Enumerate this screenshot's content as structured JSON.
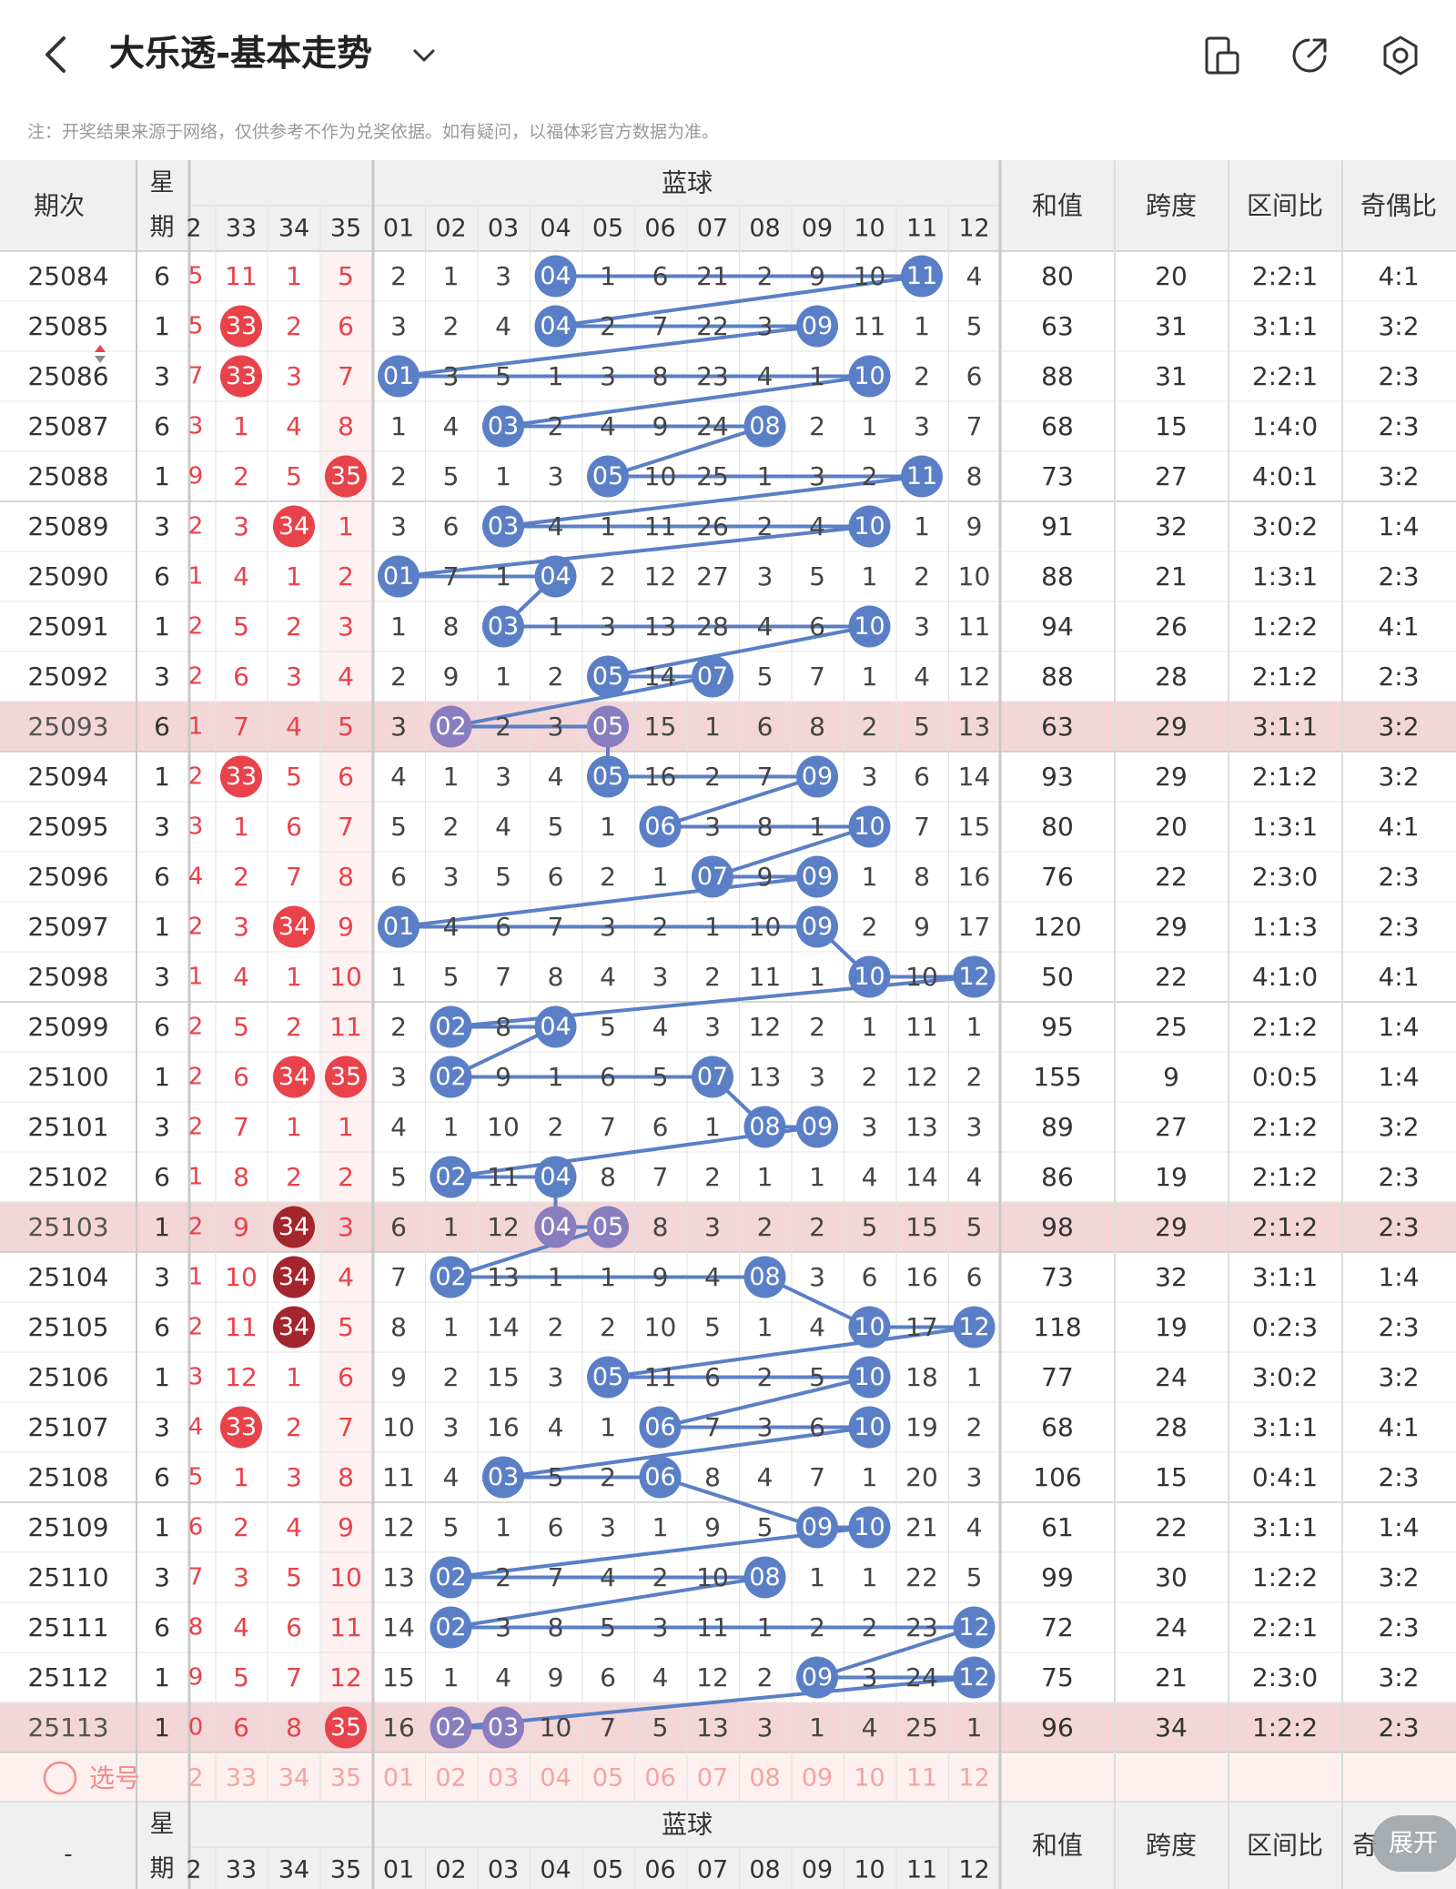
{
  "header": {
    "title": "大乐透-基本走势",
    "icons": [
      "chevron-left-icon",
      "chevron-down-icon",
      "device-icon",
      "share-icon",
      "settings-icon"
    ]
  },
  "notice": "注：开奖结果来源于网络，仅供参考不作为兑奖依据。如有疑问，以福体彩官方数据为准。",
  "table": {
    "period_label": "期次",
    "week_label_top": "星",
    "week_label_bottom": "期",
    "blue_label": "蓝球",
    "stat_labels": [
      "和值",
      "跨度",
      "区间比",
      "奇偶比"
    ],
    "front_partial_header": "2",
    "front_headers": [
      "33",
      "34",
      "35"
    ],
    "blue_headers": [
      "01",
      "02",
      "03",
      "04",
      "05",
      "06",
      "07",
      "08",
      "09",
      "10",
      "11",
      "12"
    ],
    "rows": [
      {
        "period": "25084",
        "week": "6",
        "partial": "5",
        "front": [
          "11",
          "1",
          "5"
        ],
        "blue_misses": [
          "2",
          "1",
          "3",
          "04",
          "1",
          "6",
          "21",
          "2",
          "9",
          "10",
          "11",
          "4"
        ],
        "sum": "80",
        "span": "20",
        "zone": "2:2:1",
        "odd_even": "4:1",
        "front_hits": [],
        "blue_hits": [
          "04",
          "11"
        ],
        "highlight": false
      },
      {
        "period": "25085",
        "week": "1",
        "partial": "5",
        "front": [
          "33",
          "2",
          "6"
        ],
        "blue_misses": [
          "3",
          "2",
          "4",
          "04",
          "2",
          "7",
          "22",
          "3",
          "09",
          "11",
          "1",
          "5"
        ],
        "sum": "63",
        "span": "31",
        "zone": "3:1:1",
        "odd_even": "3:2",
        "front_hits": [
          "33"
        ],
        "blue_hits": [
          "04",
          "09"
        ],
        "highlight": false
      },
      {
        "period": "25086",
        "week": "3",
        "partial": "7",
        "front": [
          "33",
          "3",
          "7"
        ],
        "blue_misses": [
          "01",
          "3",
          "5",
          "1",
          "3",
          "8",
          "23",
          "4",
          "1",
          "10",
          "2",
          "6"
        ],
        "sum": "88",
        "span": "31",
        "zone": "2:2:1",
        "odd_even": "2:3",
        "front_hits": [
          "33"
        ],
        "blue_hits": [
          "01",
          "10"
        ],
        "highlight": false
      },
      {
        "period": "25087",
        "week": "6",
        "partial": "3",
        "front": [
          "1",
          "4",
          "8"
        ],
        "blue_misses": [
          "1",
          "4",
          "03",
          "2",
          "4",
          "9",
          "24",
          "08",
          "2",
          "1",
          "3",
          "7"
        ],
        "sum": "68",
        "span": "15",
        "zone": "1:4:0",
        "odd_even": "2:3",
        "front_hits": [],
        "blue_hits": [
          "03",
          "08"
        ],
        "highlight": false
      },
      {
        "period": "25088",
        "week": "1",
        "partial": "9",
        "front": [
          "2",
          "5",
          "35"
        ],
        "blue_misses": [
          "2",
          "5",
          "1",
          "3",
          "05",
          "10",
          "25",
          "1",
          "3",
          "2",
          "11",
          "8"
        ],
        "sum": "73",
        "span": "27",
        "zone": "4:0:1",
        "odd_even": "3:2",
        "front_hits": [
          "35"
        ],
        "blue_hits": [
          "05",
          "11"
        ],
        "highlight": false
      },
      {
        "period": "25089",
        "week": "3",
        "partial": "2",
        "front": [
          "3",
          "34",
          "1"
        ],
        "blue_misses": [
          "3",
          "6",
          "03",
          "4",
          "1",
          "11",
          "26",
          "2",
          "4",
          "10",
          "1",
          "9"
        ],
        "sum": "91",
        "span": "32",
        "zone": "3:0:2",
        "odd_even": "1:4",
        "front_hits": [
          "34"
        ],
        "blue_hits": [
          "03",
          "10"
        ],
        "highlight": false
      },
      {
        "period": "25090",
        "week": "6",
        "partial": "1",
        "front": [
          "4",
          "1",
          "2"
        ],
        "blue_misses": [
          "01",
          "7",
          "1",
          "04",
          "2",
          "12",
          "27",
          "3",
          "5",
          "1",
          "2",
          "10"
        ],
        "sum": "88",
        "span": "21",
        "zone": "1:3:1",
        "odd_even": "2:3",
        "front_hits": [],
        "blue_hits": [
          "01",
          "04"
        ],
        "highlight": false
      },
      {
        "period": "25091",
        "week": "1",
        "partial": "2",
        "front": [
          "5",
          "2",
          "3"
        ],
        "blue_misses": [
          "1",
          "8",
          "03",
          "1",
          "3",
          "13",
          "28",
          "4",
          "6",
          "10",
          "3",
          "11"
        ],
        "sum": "94",
        "span": "26",
        "zone": "1:2:2",
        "odd_even": "4:1",
        "front_hits": [],
        "blue_hits": [
          "03",
          "10"
        ],
        "highlight": false
      },
      {
        "period": "25092",
        "week": "3",
        "partial": "2",
        "front": [
          "6",
          "3",
          "4"
        ],
        "blue_misses": [
          "2",
          "9",
          "1",
          "2",
          "05",
          "14",
          "07",
          "5",
          "7",
          "1",
          "4",
          "12"
        ],
        "sum": "88",
        "span": "28",
        "zone": "2:1:2",
        "odd_even": "2:3",
        "front_hits": [],
        "blue_hits": [
          "05",
          "07"
        ],
        "highlight": false
      },
      {
        "period": "25093",
        "week": "6",
        "partial": "1",
        "front": [
          "7",
          "4",
          "5"
        ],
        "blue_misses": [
          "3",
          "02",
          "2",
          "3",
          "05",
          "15",
          "1",
          "6",
          "8",
          "2",
          "5",
          "13"
        ],
        "sum": "63",
        "span": "29",
        "zone": "3:1:1",
        "odd_even": "3:2",
        "front_hits": [],
        "blue_hits": [
          "02",
          "05"
        ],
        "highlight": true
      },
      {
        "period": "25094",
        "week": "1",
        "partial": "2",
        "front": [
          "33",
          "5",
          "6"
        ],
        "blue_misses": [
          "4",
          "1",
          "3",
          "4",
          "05",
          "16",
          "2",
          "7",
          "09",
          "3",
          "6",
          "14"
        ],
        "sum": "93",
        "span": "29",
        "zone": "2:1:2",
        "odd_even": "3:2",
        "front_hits": [
          "33"
        ],
        "blue_hits": [
          "05",
          "09"
        ],
        "highlight": false
      },
      {
        "period": "25095",
        "week": "3",
        "partial": "3",
        "front": [
          "1",
          "6",
          "7"
        ],
        "blue_misses": [
          "5",
          "2",
          "4",
          "5",
          "1",
          "06",
          "3",
          "8",
          "1",
          "10",
          "7",
          "15"
        ],
        "sum": "80",
        "span": "20",
        "zone": "1:3:1",
        "odd_even": "4:1",
        "front_hits": [],
        "blue_hits": [
          "06",
          "10"
        ],
        "highlight": false
      },
      {
        "period": "25096",
        "week": "6",
        "partial": "4",
        "front": [
          "2",
          "7",
          "8"
        ],
        "blue_misses": [
          "6",
          "3",
          "5",
          "6",
          "2",
          "1",
          "07",
          "9",
          "09",
          "1",
          "8",
          "16"
        ],
        "sum": "76",
        "span": "22",
        "zone": "2:3:0",
        "odd_even": "2:3",
        "front_hits": [],
        "blue_hits": [
          "07",
          "09"
        ],
        "highlight": false
      },
      {
        "period": "25097",
        "week": "1",
        "partial": "2",
        "front": [
          "3",
          "34",
          "9"
        ],
        "blue_misses": [
          "01",
          "4",
          "6",
          "7",
          "3",
          "2",
          "1",
          "10",
          "09",
          "2",
          "9",
          "17"
        ],
        "sum": "120",
        "span": "29",
        "zone": "1:1:3",
        "odd_even": "2:3",
        "front_hits": [
          "34"
        ],
        "blue_hits": [
          "01",
          "09"
        ],
        "highlight": false
      },
      {
        "period": "25098",
        "week": "3",
        "partial": "1",
        "front": [
          "4",
          "1",
          "10"
        ],
        "blue_misses": [
          "1",
          "5",
          "7",
          "8",
          "4",
          "3",
          "2",
          "11",
          "1",
          "10",
          "10",
          "12"
        ],
        "sum": "50",
        "span": "22",
        "zone": "4:1:0",
        "odd_even": "4:1",
        "front_hits": [],
        "blue_hits": [
          "10",
          "12"
        ],
        "highlight": false
      },
      {
        "period": "25099",
        "week": "6",
        "partial": "2",
        "front": [
          "5",
          "2",
          "11"
        ],
        "blue_misses": [
          "2",
          "02",
          "8",
          "04",
          "5",
          "4",
          "3",
          "12",
          "2",
          "1",
          "11",
          "1"
        ],
        "sum": "95",
        "span": "25",
        "zone": "2:1:2",
        "odd_even": "1:4",
        "front_hits": [],
        "blue_hits": [
          "02",
          "04"
        ],
        "highlight": false
      },
      {
        "period": "25100",
        "week": "1",
        "partial": "2",
        "front": [
          "6",
          "34",
          "35"
        ],
        "blue_misses": [
          "3",
          "02",
          "9",
          "1",
          "6",
          "5",
          "07",
          "13",
          "3",
          "2",
          "12",
          "2"
        ],
        "sum": "155",
        "span": "9",
        "zone": "0:0:5",
        "odd_even": "1:4",
        "front_hits": [
          "34",
          "35"
        ],
        "blue_hits": [
          "02",
          "07"
        ],
        "highlight": false
      },
      {
        "period": "25101",
        "week": "3",
        "partial": "2",
        "front": [
          "7",
          "1",
          "1"
        ],
        "blue_misses": [
          "4",
          "1",
          "10",
          "2",
          "7",
          "6",
          "1",
          "08",
          "09",
          "3",
          "13",
          "3"
        ],
        "sum": "89",
        "span": "27",
        "zone": "2:1:2",
        "odd_even": "3:2",
        "front_hits": [],
        "blue_hits": [
          "08",
          "09"
        ],
        "highlight": false
      },
      {
        "period": "25102",
        "week": "6",
        "partial": "1",
        "front": [
          "8",
          "2",
          "2"
        ],
        "blue_misses": [
          "5",
          "02",
          "11",
          "04",
          "8",
          "7",
          "2",
          "1",
          "1",
          "4",
          "14",
          "4"
        ],
        "sum": "86",
        "span": "19",
        "zone": "2:1:2",
        "odd_even": "2:3",
        "front_hits": [],
        "blue_hits": [
          "02",
          "04"
        ],
        "highlight": false
      },
      {
        "period": "25103",
        "week": "1",
        "partial": "2",
        "front": [
          "9",
          "34",
          "3"
        ],
        "blue_misses": [
          "6",
          "1",
          "12",
          "04",
          "05",
          "8",
          "3",
          "2",
          "2",
          "5",
          "15",
          "5"
        ],
        "sum": "98",
        "span": "29",
        "zone": "2:1:2",
        "odd_even": "2:3",
        "front_hits": [
          "34"
        ],
        "blue_hits": [
          "04",
          "05"
        ],
        "highlight": true
      },
      {
        "period": "25104",
        "week": "3",
        "partial": "1",
        "front": [
          "10",
          "34",
          "4"
        ],
        "blue_misses": [
          "7",
          "02",
          "13",
          "1",
          "1",
          "9",
          "4",
          "08",
          "3",
          "6",
          "16",
          "6"
        ],
        "sum": "73",
        "span": "32",
        "zone": "3:1:1",
        "odd_even": "1:4",
        "front_hits": [
          "34"
        ],
        "blue_hits": [
          "02",
          "08"
        ],
        "highlight": false
      },
      {
        "period": "25105",
        "week": "6",
        "partial": "2",
        "front": [
          "11",
          "34",
          "5"
        ],
        "blue_misses": [
          "8",
          "1",
          "14",
          "2",
          "2",
          "10",
          "5",
          "1",
          "4",
          "10",
          "17",
          "12"
        ],
        "sum": "118",
        "span": "19",
        "zone": "0:2:3",
        "odd_even": "2:3",
        "front_hits": [
          "34"
        ],
        "blue_hits": [
          "10",
          "12"
        ],
        "highlight": false
      },
      {
        "period": "25106",
        "week": "1",
        "partial": "3",
        "front": [
          "12",
          "1",
          "6"
        ],
        "blue_misses": [
          "9",
          "2",
          "15",
          "3",
          "05",
          "11",
          "6",
          "2",
          "5",
          "10",
          "18",
          "1"
        ],
        "sum": "77",
        "span": "24",
        "zone": "3:0:2",
        "odd_even": "3:2",
        "front_hits": [],
        "blue_hits": [
          "05",
          "10"
        ],
        "highlight": false
      },
      {
        "period": "25107",
        "week": "3",
        "partial": "4",
        "front": [
          "33",
          "2",
          "7"
        ],
        "blue_misses": [
          "10",
          "3",
          "16",
          "4",
          "1",
          "06",
          "7",
          "3",
          "6",
          "10",
          "19",
          "2"
        ],
        "sum": "68",
        "span": "28",
        "zone": "3:1:1",
        "odd_even": "4:1",
        "front_hits": [
          "33"
        ],
        "blue_hits": [
          "06",
          "10"
        ],
        "highlight": false
      },
      {
        "period": "25108",
        "week": "6",
        "partial": "5",
        "front": [
          "1",
          "3",
          "8"
        ],
        "blue_misses": [
          "11",
          "4",
          "03",
          "5",
          "2",
          "06",
          "8",
          "4",
          "7",
          "1",
          "20",
          "3"
        ],
        "sum": "106",
        "span": "15",
        "zone": "0:4:1",
        "odd_even": "2:3",
        "front_hits": [],
        "blue_hits": [
          "03",
          "06"
        ],
        "highlight": false
      },
      {
        "period": "25109",
        "week": "1",
        "partial": "6",
        "front": [
          "2",
          "4",
          "9"
        ],
        "blue_misses": [
          "12",
          "5",
          "1",
          "6",
          "3",
          "1",
          "9",
          "5",
          "09",
          "10",
          "21",
          "4"
        ],
        "sum": "61",
        "span": "22",
        "zone": "3:1:1",
        "odd_even": "1:4",
        "front_hits": [],
        "blue_hits": [
          "09",
          "10"
        ],
        "highlight": false
      },
      {
        "period": "25110",
        "week": "3",
        "partial": "7",
        "front": [
          "3",
          "5",
          "10"
        ],
        "blue_misses": [
          "13",
          "02",
          "2",
          "7",
          "4",
          "2",
          "10",
          "08",
          "1",
          "1",
          "22",
          "5"
        ],
        "sum": "99",
        "span": "30",
        "zone": "1:2:2",
        "odd_even": "3:2",
        "front_hits": [],
        "blue_hits": [
          "02",
          "08"
        ],
        "highlight": false
      },
      {
        "period": "25111",
        "week": "6",
        "partial": "8",
        "front": [
          "4",
          "6",
          "11"
        ],
        "blue_misses": [
          "14",
          "02",
          "3",
          "8",
          "5",
          "3",
          "11",
          "1",
          "2",
          "2",
          "23",
          "12"
        ],
        "sum": "72",
        "span": "24",
        "zone": "2:2:1",
        "odd_even": "2:3",
        "front_hits": [],
        "blue_hits": [
          "02",
          "12"
        ],
        "highlight": false
      },
      {
        "period": "25112",
        "week": "1",
        "partial": "9",
        "front": [
          "5",
          "7",
          "12"
        ],
        "blue_misses": [
          "15",
          "1",
          "4",
          "9",
          "6",
          "4",
          "12",
          "2",
          "09",
          "3",
          "24",
          "12"
        ],
        "sum": "75",
        "span": "21",
        "zone": "2:3:0",
        "odd_even": "3:2",
        "front_hits": [],
        "blue_hits": [
          "09",
          "12"
        ],
        "highlight": false
      },
      {
        "period": "25113",
        "week": "1",
        "partial": "0",
        "front": [
          "6",
          "8",
          "35"
        ],
        "blue_misses": [
          "16",
          "02",
          "03",
          "10",
          "7",
          "5",
          "13",
          "3",
          "1",
          "4",
          "25",
          "1"
        ],
        "sum": "96",
        "span": "34",
        "zone": "1:2:2",
        "odd_even": "2:3",
        "front_hits": [
          "35"
        ],
        "blue_hits": [
          "02",
          "03"
        ],
        "highlight": true
      }
    ],
    "select_label": "选号",
    "footer_period_label": "-",
    "footer_partial_stat": "奇",
    "expand_label": "展开"
  },
  "colors": {
    "red_ball": "#e8424a",
    "dark_red_ball": "#a3252d",
    "blue_ball": "#5b7fc6",
    "purple_ball": "#8a7dbf",
    "blue_line": "#5b7fc6",
    "highlight_row": "#f3d6d8",
    "header_bg": "#f0f0f0"
  }
}
